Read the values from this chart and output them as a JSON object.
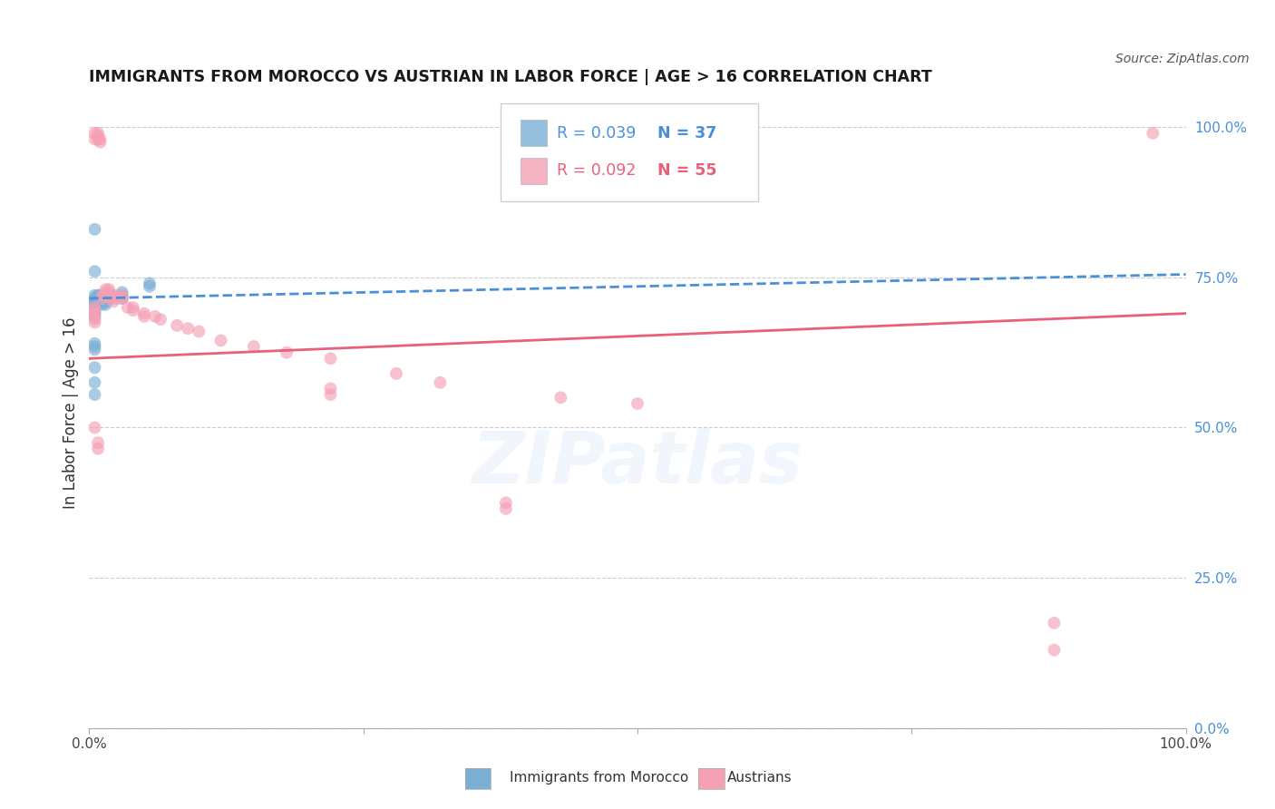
{
  "title": "IMMIGRANTS FROM MOROCCO VS AUSTRIAN IN LABOR FORCE | AGE > 16 CORRELATION CHART",
  "source": "Source: ZipAtlas.com",
  "ylabel": "In Labor Force | Age > 16",
  "background_color": "#ffffff",
  "grid_color": "#cccccc",
  "blue_color": "#7bafd4",
  "pink_color": "#f4a0b5",
  "blue_line_color": "#4a90d9",
  "pink_line_color": "#e8607a",
  "right_axis_color": "#4a90d9",
  "watermark": "ZIPatlas",
  "blue_scatter_x": [
    0.005,
    0.005,
    0.005,
    0.005,
    0.005,
    0.005,
    0.005,
    0.005,
    0.008,
    0.008,
    0.008,
    0.008,
    0.009,
    0.009,
    0.009,
    0.012,
    0.012,
    0.015,
    0.015,
    0.015,
    0.018,
    0.018,
    0.02,
    0.02,
    0.03,
    0.03,
    0.03,
    0.005,
    0.005,
    0.005,
    0.055,
    0.055,
    0.005,
    0.005,
    0.005,
    0.005,
    0.005
  ],
  "blue_scatter_y": [
    0.72,
    0.715,
    0.71,
    0.705,
    0.7,
    0.695,
    0.69,
    0.685,
    0.72,
    0.715,
    0.71,
    0.705,
    0.72,
    0.715,
    0.71,
    0.71,
    0.705,
    0.715,
    0.71,
    0.705,
    0.72,
    0.715,
    0.72,
    0.715,
    0.725,
    0.72,
    0.715,
    0.64,
    0.635,
    0.63,
    0.74,
    0.735,
    0.83,
    0.76,
    0.6,
    0.575,
    0.555
  ],
  "pink_scatter_x": [
    0.005,
    0.005,
    0.008,
    0.008,
    0.008,
    0.01,
    0.01,
    0.012,
    0.012,
    0.015,
    0.015,
    0.015,
    0.018,
    0.018,
    0.018,
    0.02,
    0.022,
    0.025,
    0.025,
    0.03,
    0.03,
    0.035,
    0.04,
    0.04,
    0.05,
    0.05,
    0.06,
    0.065,
    0.08,
    0.09,
    0.1,
    0.12,
    0.15,
    0.18,
    0.22,
    0.28,
    0.32,
    0.43,
    0.5,
    0.005,
    0.005,
    0.005,
    0.005,
    0.005,
    0.005,
    0.005,
    0.008,
    0.008,
    0.22,
    0.22,
    0.38,
    0.38,
    0.88,
    0.88,
    0.97
  ],
  "pink_scatter_y": [
    0.99,
    0.98,
    0.99,
    0.985,
    0.98,
    0.98,
    0.975,
    0.72,
    0.715,
    0.73,
    0.725,
    0.72,
    0.73,
    0.725,
    0.72,
    0.715,
    0.71,
    0.72,
    0.715,
    0.72,
    0.715,
    0.7,
    0.7,
    0.695,
    0.69,
    0.685,
    0.685,
    0.68,
    0.67,
    0.665,
    0.66,
    0.645,
    0.635,
    0.625,
    0.615,
    0.59,
    0.575,
    0.55,
    0.54,
    0.7,
    0.695,
    0.69,
    0.685,
    0.68,
    0.675,
    0.5,
    0.475,
    0.465,
    0.565,
    0.555,
    0.375,
    0.365,
    0.175,
    0.13,
    0.99
  ],
  "blue_trend_x": [
    0.0,
    1.0
  ],
  "blue_trend_y": [
    0.715,
    0.755
  ],
  "pink_trend_x": [
    0.0,
    1.0
  ],
  "pink_trend_y": [
    0.615,
    0.69
  ],
  "ylim": [
    0.0,
    1.05
  ],
  "xlim": [
    0.0,
    1.0
  ],
  "yticks": [
    0.0,
    0.25,
    0.5,
    0.75,
    1.0
  ],
  "ytick_labels": [
    "0.0%",
    "25.0%",
    "50.0%",
    "75.0%",
    "100.0%"
  ]
}
